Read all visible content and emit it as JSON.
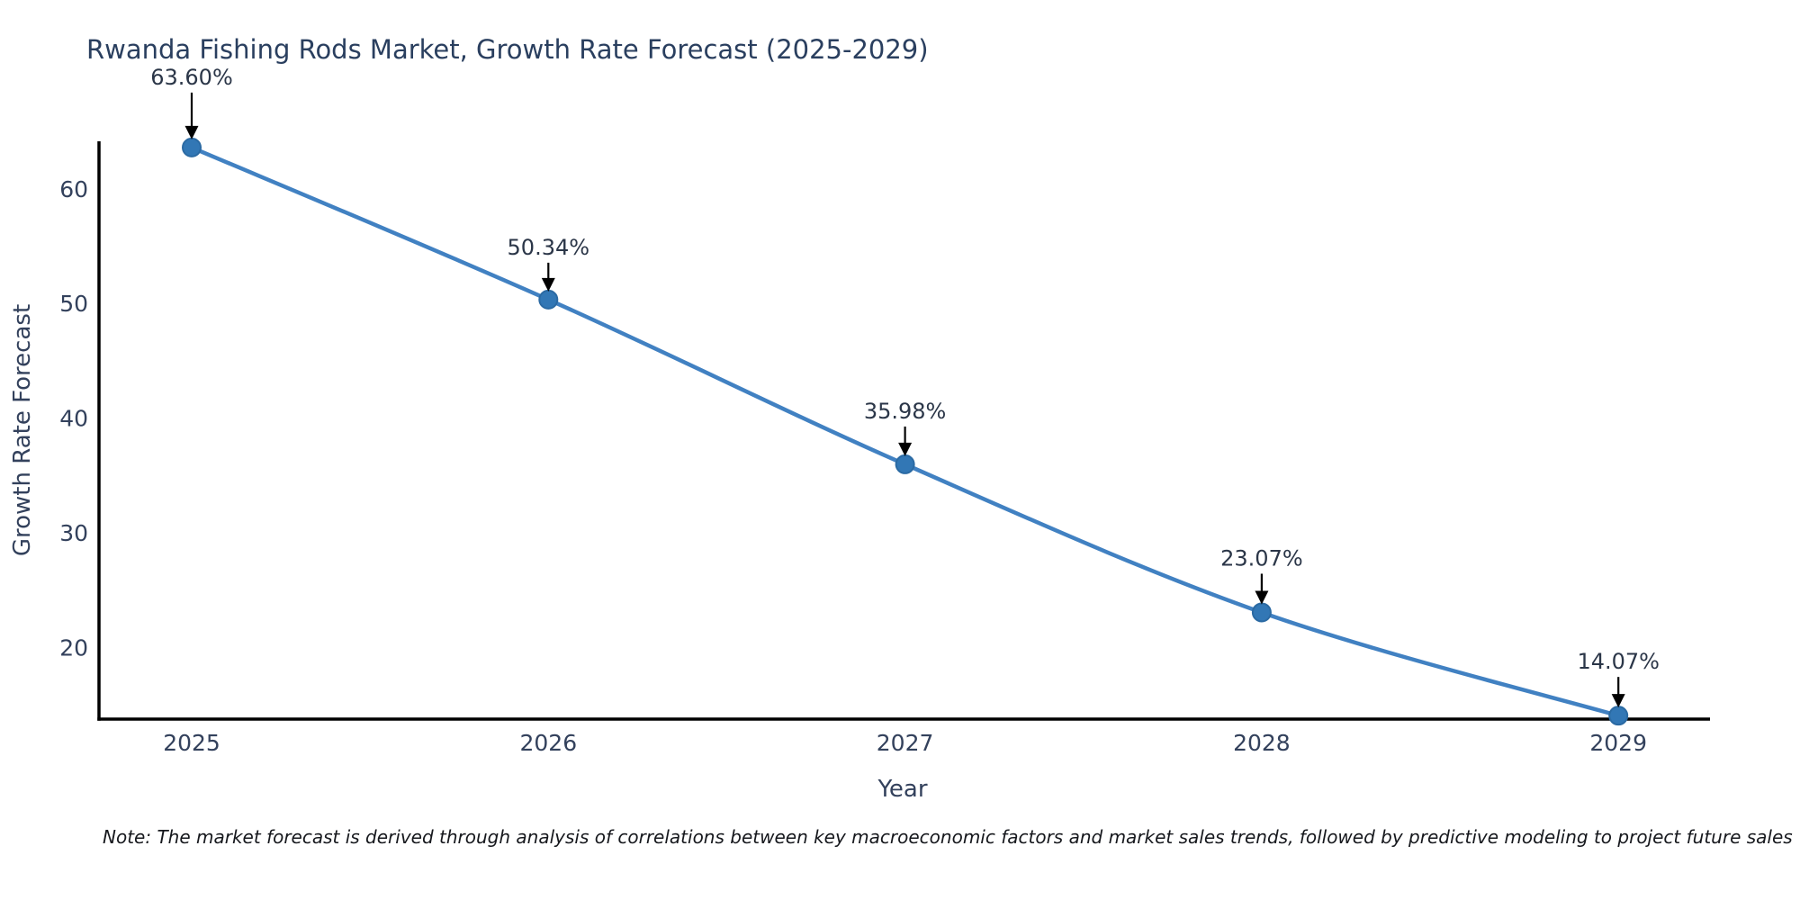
{
  "chart_data": {
    "type": "line",
    "title": "Rwanda Fishing Rods Market, Growth Rate Forecast (2025-2029)",
    "xlabel": "Year",
    "ylabel": "Growth Rate Forecast",
    "categories": [
      "2025",
      "2026",
      "2027",
      "2028",
      "2029"
    ],
    "values": [
      63.6,
      50.34,
      35.98,
      23.07,
      14.07
    ],
    "point_labels": [
      "63.60%",
      "50.34%",
      "35.98%",
      "23.07%",
      "14.07%"
    ],
    "yticks": [
      20,
      30,
      40,
      50,
      60
    ],
    "ylim": [
      13.77,
      64.14
    ],
    "grid": false,
    "legend_position": "none",
    "marker_shape": "circle",
    "annotation_arrow": "down",
    "colors": {
      "line": "#4181c2",
      "marker_fill": "#3277b5",
      "marker_edge": "#2b6aa3",
      "axis": "#000000",
      "title_text": "#2a3f5f",
      "tick_text": "#33415c",
      "axis_label_text": "#33415c",
      "annotation_text": "#2b3648",
      "arrow": "#000000",
      "background": "#ffffff"
    }
  },
  "note": "Note: The market forecast is derived through analysis of correlations between key macroeconomic factors and market sales trends, followed by predictive modeling to project future sales"
}
